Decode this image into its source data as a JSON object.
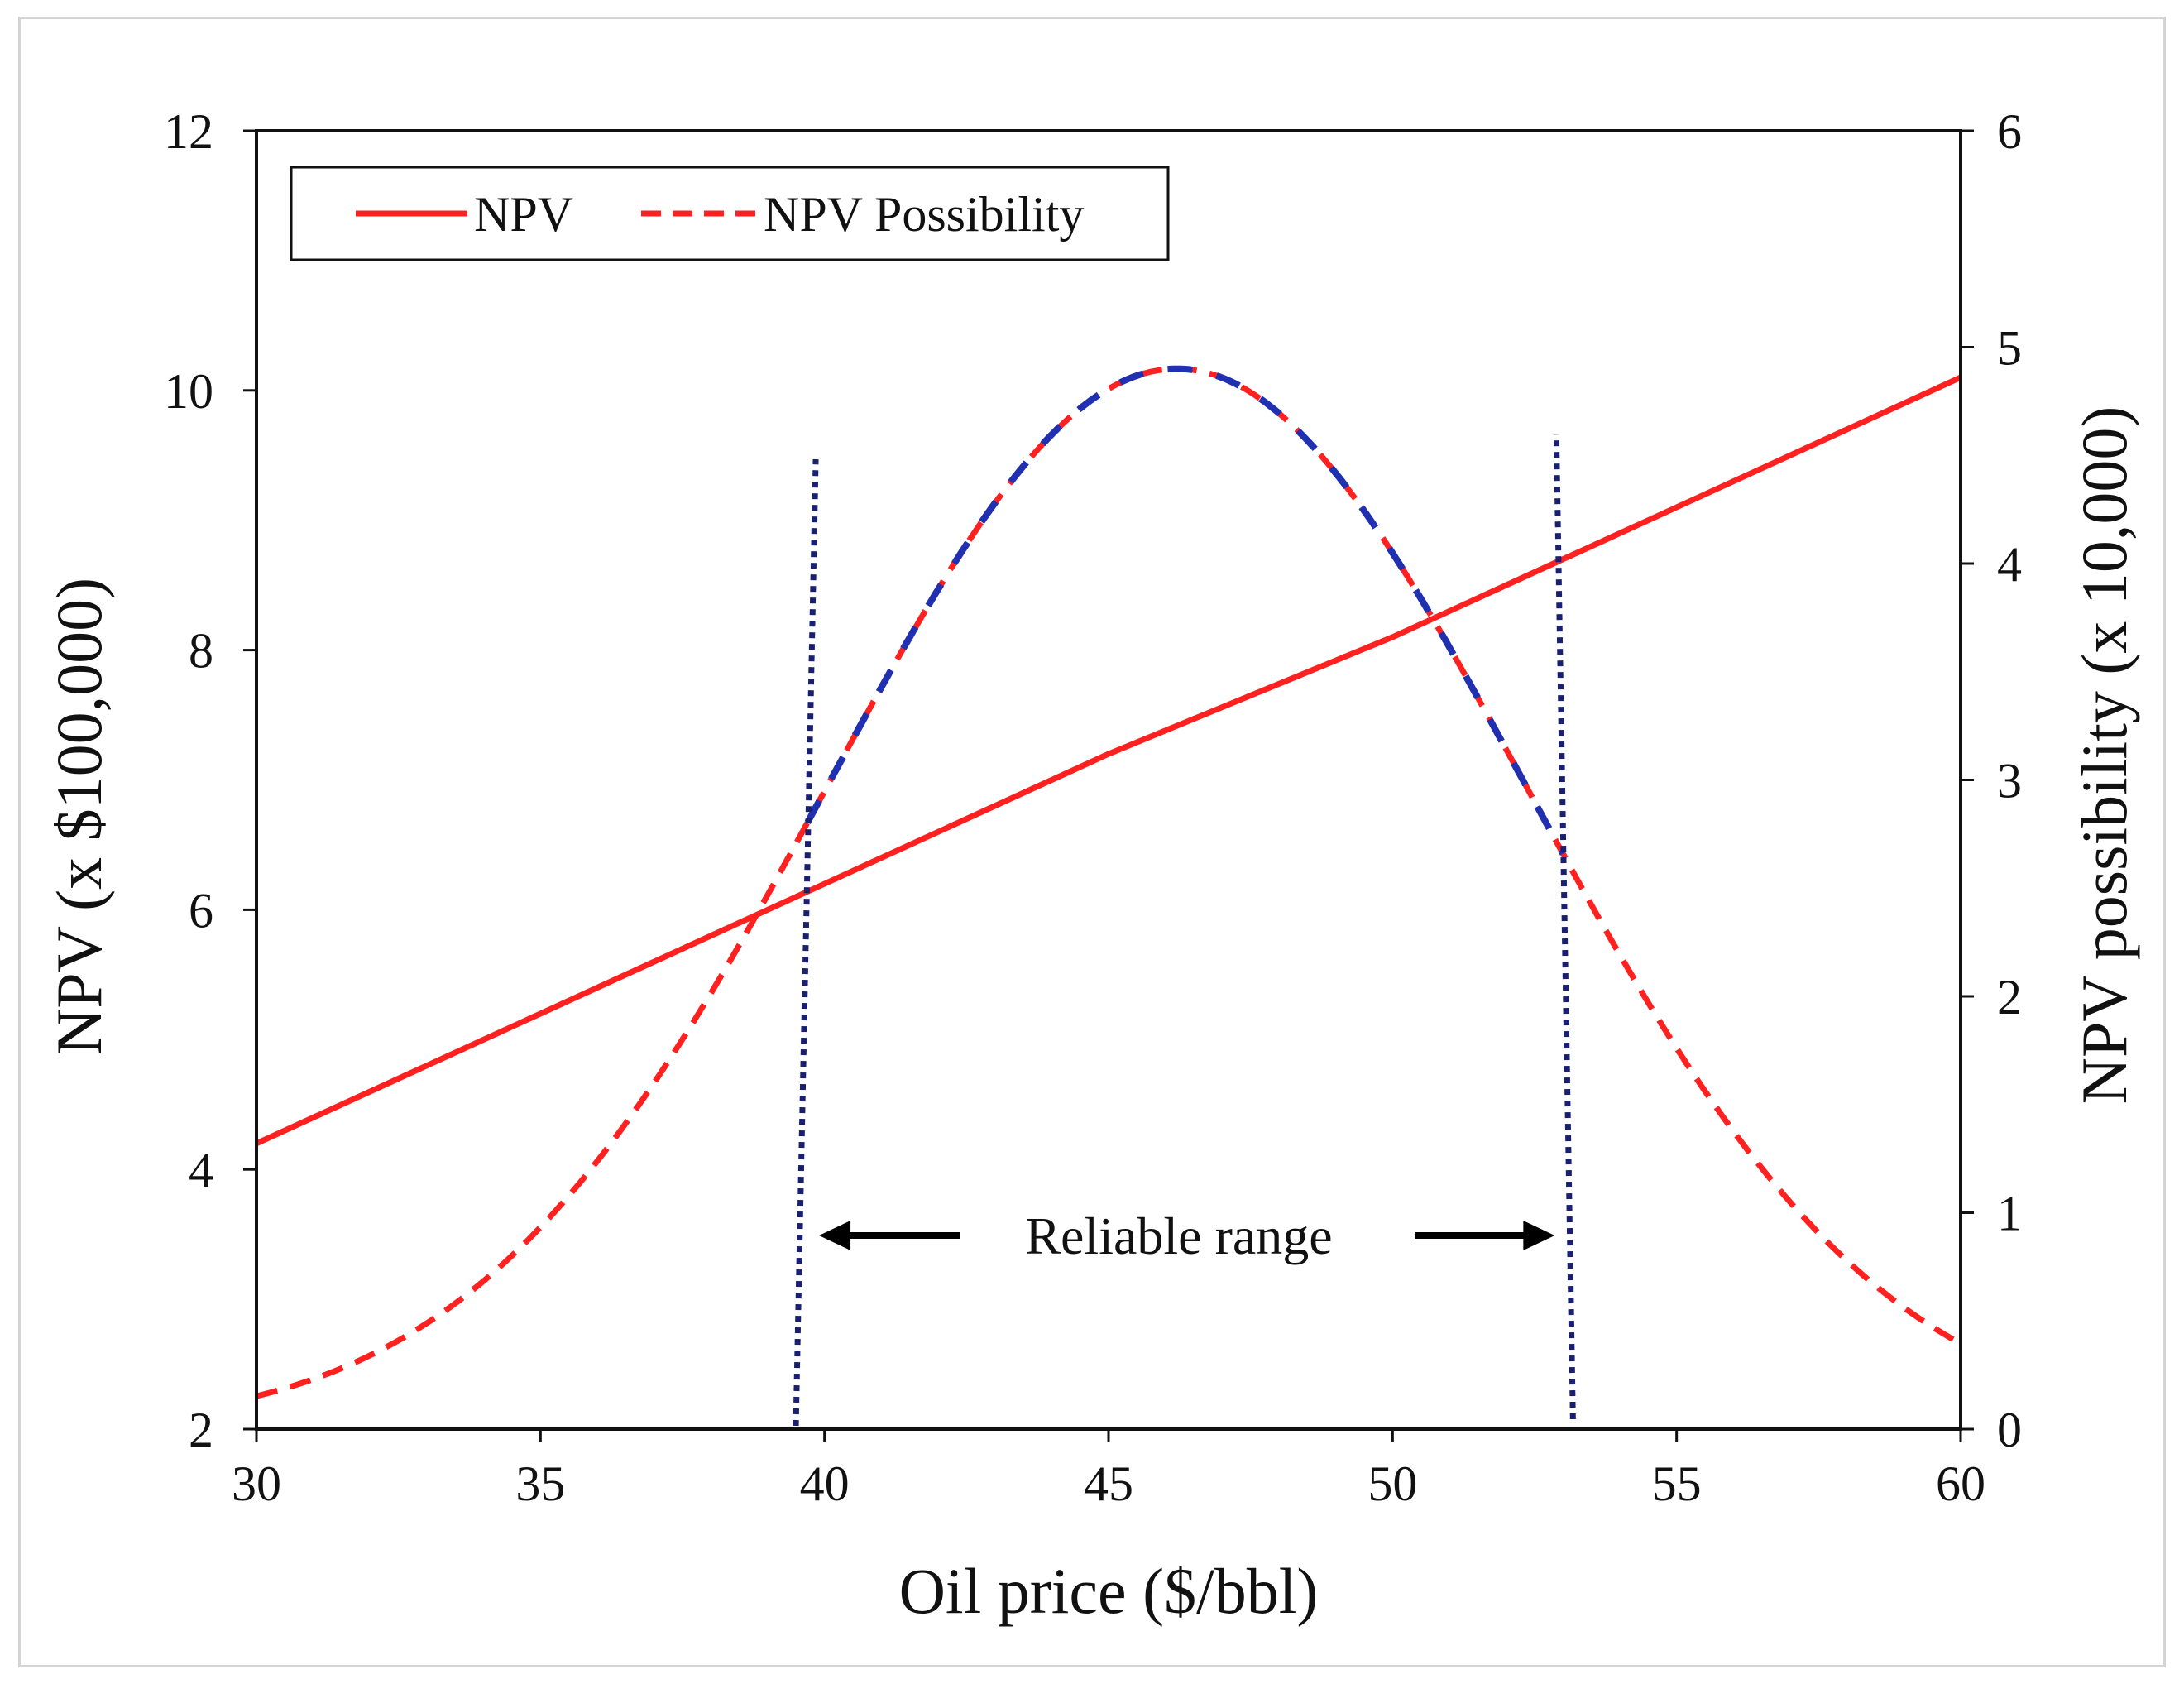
{
  "chart_data": {
    "type": "line",
    "title": "",
    "xlabel": "Oil price ($/bbl)",
    "ylabel": "NPV (x $100,000)",
    "y2label": "NPV possibility (x 10,000)",
    "xlim": [
      30,
      60
    ],
    "ylim": [
      2,
      12
    ],
    "y2lim": [
      0,
      6
    ],
    "xticks": [
      "30",
      "35",
      "40",
      "45",
      "50",
      "55",
      "60"
    ],
    "yticks": [
      "2",
      "4",
      "6",
      "8",
      "10",
      "12"
    ],
    "y2ticks": [
      "0",
      "1",
      "2",
      "3",
      "4",
      "5",
      "6"
    ],
    "legend_position": "top-left",
    "grid": false,
    "series": [
      {
        "name": "NPV",
        "axis": "left",
        "style": "solid",
        "color": "#ff2020",
        "x": [
          30,
          35,
          40,
          45,
          50,
          55,
          60
        ],
        "values": [
          4.2,
          5.2,
          6.2,
          7.2,
          8.1,
          9.1,
          10.1
        ]
      },
      {
        "name": "NPV Possibility",
        "axis": "right",
        "style": "dashed",
        "color": "#ff2020",
        "highlight_color": "#2030b0",
        "highlight_range": [
          39.7,
          53.0
        ],
        "mean": 46.2,
        "sd": 6.15,
        "peak": 4.9
      }
    ],
    "reliable_range": {
      "label": "Reliable range",
      "x_start": 39.7,
      "x_end": 53.0,
      "line_color": "#1a2070"
    }
  }
}
